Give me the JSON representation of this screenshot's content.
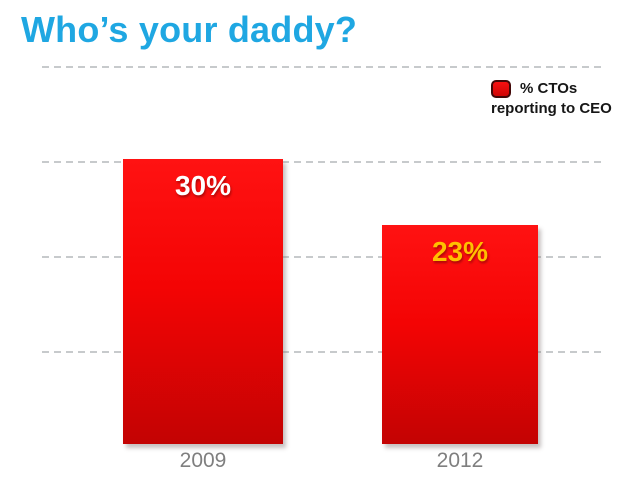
{
  "title": "Who’s your daddy?",
  "legend": {
    "line1": "% CTOs",
    "line2": "reporting to CEO",
    "swatch_color": "#e60c0c"
  },
  "chart_data": {
    "type": "bar",
    "title": "Who’s your daddy?",
    "series_name": "% CTOs reporting to CEO",
    "categories": [
      "2009",
      "2012"
    ],
    "values": [
      30,
      23
    ],
    "value_labels": [
      "30%",
      "23%"
    ],
    "value_label_colors": [
      "#ffffff",
      "#ffc000"
    ],
    "xlabel": "",
    "ylabel": "",
    "ylim": [
      0,
      40
    ],
    "gridlines_pct": [
      10,
      20,
      30,
      40
    ],
    "grid": "dashed-horizontal",
    "legend_position": "top-right",
    "bar_color_top": "#ff1212",
    "bar_color_bottom": "#c30303",
    "title_color": "#1fa7e2",
    "axis_tick_color": "#7f7f7f"
  }
}
